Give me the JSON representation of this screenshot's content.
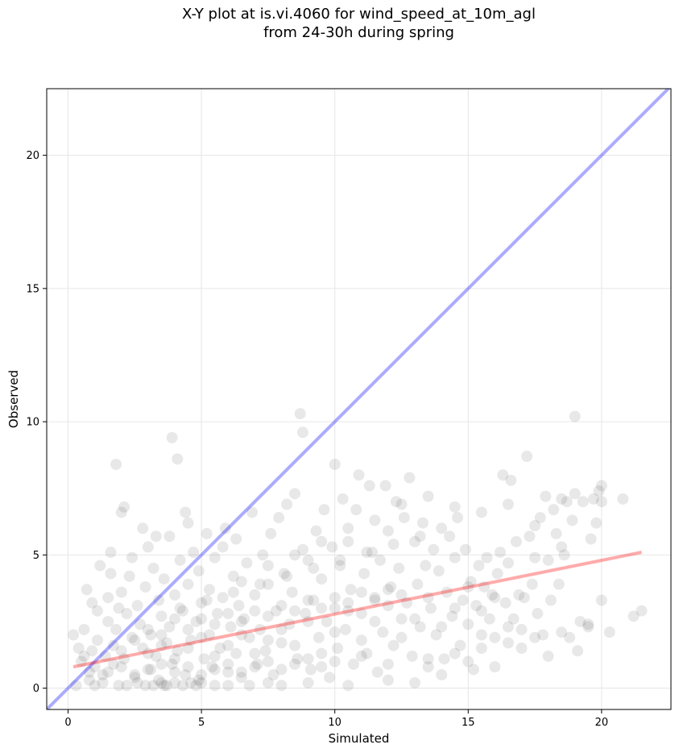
{
  "chart_data": {
    "type": "scatter",
    "title_line1": "X-Y plot at is.vi.4060 for wind_speed_at_10m_agl",
    "title_line2": "from 24-30h during spring",
    "xlabel": "Simulated",
    "ylabel": "Observed",
    "xlim": [
      -0.8,
      22.6
    ],
    "ylim": [
      -0.8,
      22.5
    ],
    "xticks": [
      0,
      5,
      10,
      15,
      20
    ],
    "yticks": [
      0,
      5,
      10,
      15,
      20
    ],
    "grid": true,
    "point_color": "#000000",
    "one_to_one_line_color": "#0000ff",
    "fit_line_color": "#ff0000",
    "fit_line": {
      "x": [
        0.2,
        21.5
      ],
      "y": [
        0.8,
        5.1
      ]
    },
    "points": [
      [
        0.2,
        2.0
      ],
      [
        0.4,
        1.5
      ],
      [
        0.5,
        1.0
      ],
      [
        0.6,
        1.2
      ],
      [
        0.6,
        2.2
      ],
      [
        0.7,
        3.7
      ],
      [
        0.8,
        0.6
      ],
      [
        0.9,
        1.4
      ],
      [
        0.9,
        3.2
      ],
      [
        1.0,
        0.8
      ],
      [
        1.1,
        1.8
      ],
      [
        1.1,
        2.9
      ],
      [
        1.2,
        4.6
      ],
      [
        1.3,
        0.5
      ],
      [
        1.4,
        1.2
      ],
      [
        1.5,
        2.5
      ],
      [
        1.5,
        3.4
      ],
      [
        1.6,
        4.3
      ],
      [
        1.6,
        5.1
      ],
      [
        1.7,
        0.9
      ],
      [
        1.7,
        1.6
      ],
      [
        1.8,
        2.2
      ],
      [
        1.8,
        8.4
      ],
      [
        1.9,
        3.0
      ],
      [
        2.0,
        3.6
      ],
      [
        2.0,
        6.6
      ],
      [
        2.1,
        6.8
      ],
      [
        2.1,
        1.1
      ],
      [
        2.2,
        2.8
      ],
      [
        2.3,
        4.2
      ],
      [
        2.4,
        1.9
      ],
      [
        2.4,
        4.9
      ],
      [
        2.5,
        0.4
      ],
      [
        2.6,
        3.1
      ],
      [
        2.7,
        2.4
      ],
      [
        2.8,
        6.0
      ],
      [
        2.8,
        1.5
      ],
      [
        2.9,
        3.8
      ],
      [
        3.0,
        5.3
      ],
      [
        3.1,
        0.7
      ],
      [
        3.1,
        2.0
      ],
      [
        3.2,
        4.5
      ],
      [
        3.3,
        1.2
      ],
      [
        3.3,
        5.7
      ],
      [
        3.4,
        3.3
      ],
      [
        3.5,
        0.2
      ],
      [
        3.5,
        2.7
      ],
      [
        3.6,
        4.1
      ],
      [
        3.7,
        1.7
      ],
      [
        3.8,
        5.7
      ],
      [
        3.8,
        2.3
      ],
      [
        3.9,
        9.4
      ],
      [
        3.9,
        0.9
      ],
      [
        4.0,
        3.5
      ],
      [
        4.1,
        8.6
      ],
      [
        4.1,
        1.4
      ],
      [
        4.2,
        4.8
      ],
      [
        4.3,
        2.9
      ],
      [
        4.4,
        0.5
      ],
      [
        4.4,
        6.6
      ],
      [
        4.5,
        6.2
      ],
      [
        4.5,
        3.9
      ],
      [
        4.6,
        1.8
      ],
      [
        4.7,
        5.1
      ],
      [
        4.8,
        2.5
      ],
      [
        4.9,
        0.3
      ],
      [
        4.9,
        4.4
      ],
      [
        5.0,
        3.2
      ],
      [
        5.1,
        1.1
      ],
      [
        5.2,
        5.8
      ],
      [
        5.3,
        2.0
      ],
      [
        5.3,
        3.7
      ],
      [
        5.4,
        0.8
      ],
      [
        5.5,
        4.9
      ],
      [
        5.6,
        2.8
      ],
      [
        5.7,
        1.5
      ],
      [
        5.8,
        5.3
      ],
      [
        5.8,
        3.4
      ],
      [
        5.9,
        6.0
      ],
      [
        6.0,
        0.6
      ],
      [
        6.1,
        2.3
      ],
      [
        6.2,
        4.2
      ],
      [
        6.3,
        1.3
      ],
      [
        6.3,
        5.6
      ],
      [
        6.4,
        3.1
      ],
      [
        6.5,
        0.4
      ],
      [
        6.6,
        2.6
      ],
      [
        6.7,
        4.7
      ],
      [
        6.8,
        1.9
      ],
      [
        6.9,
        6.6
      ],
      [
        7.0,
        3.5
      ],
      [
        7.1,
        0.9
      ],
      [
        7.2,
        2.2
      ],
      [
        7.3,
        5.0
      ],
      [
        7.4,
        1.4
      ],
      [
        7.5,
        3.9
      ],
      [
        7.6,
        5.8
      ],
      [
        7.7,
        0.5
      ],
      [
        7.8,
        2.9
      ],
      [
        7.9,
        6.4
      ],
      [
        8.0,
        1.7
      ],
      [
        8.1,
        4.3
      ],
      [
        8.2,
        6.9
      ],
      [
        8.3,
        2.4
      ],
      [
        8.4,
        3.6
      ],
      [
        8.5,
        7.3
      ],
      [
        8.6,
        1.1
      ],
      [
        8.7,
        10.3
      ],
      [
        8.8,
        9.6
      ],
      [
        8.8,
        5.2
      ],
      [
        8.9,
        2.8
      ],
      [
        9.0,
        4.8
      ],
      [
        9.1,
        0.7
      ],
      [
        9.2,
        3.3
      ],
      [
        9.3,
        5.9
      ],
      [
        9.4,
        1.9
      ],
      [
        9.5,
        4.1
      ],
      [
        9.6,
        6.7
      ],
      [
        9.7,
        2.5
      ],
      [
        9.8,
        0.4
      ],
      [
        9.9,
        5.3
      ],
      [
        10.0,
        3.0
      ],
      [
        10.0,
        8.4
      ],
      [
        10.1,
        1.5
      ],
      [
        10.2,
        4.6
      ],
      [
        10.3,
        7.1
      ],
      [
        10.4,
        2.2
      ],
      [
        10.5,
        5.5
      ],
      [
        10.6,
        3.7
      ],
      [
        10.7,
        0.9
      ],
      [
        10.8,
        6.7
      ],
      [
        10.9,
        8.0
      ],
      [
        11.0,
        2.8
      ],
      [
        11.1,
        4.3
      ],
      [
        11.2,
        1.3
      ],
      [
        11.3,
        7.6
      ],
      [
        11.4,
        5.1
      ],
      [
        11.5,
        3.4
      ],
      [
        11.6,
        0.6
      ],
      [
        11.7,
        4.8
      ],
      [
        11.8,
        2.1
      ],
      [
        11.9,
        7.6
      ],
      [
        12.0,
        5.9
      ],
      [
        12.1,
        3.8
      ],
      [
        12.2,
        1.6
      ],
      [
        12.3,
        7.0
      ],
      [
        12.4,
        4.5
      ],
      [
        12.5,
        2.6
      ],
      [
        12.6,
        6.4
      ],
      [
        12.7,
        3.2
      ],
      [
        12.8,
        7.9
      ],
      [
        12.9,
        1.2
      ],
      [
        13.0,
        5.5
      ],
      [
        13.1,
        3.9
      ],
      [
        13.2,
        2.3
      ],
      [
        13.3,
        6.2
      ],
      [
        13.4,
        4.6
      ],
      [
        13.5,
        0.8
      ],
      [
        13.6,
        3.0
      ],
      [
        13.7,
        5.2
      ],
      [
        13.8,
        2.0
      ],
      [
        13.9,
        4.4
      ],
      [
        14.0,
        6.0
      ],
      [
        14.1,
        1.1
      ],
      [
        14.2,
        3.6
      ],
      [
        14.3,
        5.7
      ],
      [
        14.4,
        2.7
      ],
      [
        14.5,
        4.9
      ],
      [
        14.6,
        6.4
      ],
      [
        14.7,
        1.6
      ],
      [
        14.8,
        3.3
      ],
      [
        14.9,
        5.2
      ],
      [
        15.0,
        2.4
      ],
      [
        15.1,
        4.0
      ],
      [
        15.2,
        0.7
      ],
      [
        15.3,
        3.1
      ],
      [
        15.4,
        4.6
      ],
      [
        15.5,
        2.0
      ],
      [
        15.6,
        3.8
      ],
      [
        15.7,
        4.9
      ],
      [
        15.8,
        2.6
      ],
      [
        15.9,
        3.5
      ],
      [
        16.0,
        1.9
      ],
      [
        16.1,
        4.3
      ],
      [
        16.2,
        5.1
      ],
      [
        16.3,
        8.0
      ],
      [
        16.4,
        3.2
      ],
      [
        16.5,
        4.7
      ],
      [
        16.6,
        7.8
      ],
      [
        16.7,
        2.6
      ],
      [
        16.8,
        5.5
      ],
      [
        16.9,
        3.5
      ],
      [
        17.0,
        2.2
      ],
      [
        17.1,
        3.4
      ],
      [
        17.2,
        8.7
      ],
      [
        17.3,
        5.7
      ],
      [
        17.4,
        3.9
      ],
      [
        17.5,
        4.9
      ],
      [
        17.6,
        2.8
      ],
      [
        17.7,
        6.4
      ],
      [
        17.8,
        2.0
      ],
      [
        17.9,
        7.2
      ],
      [
        18.0,
        4.8
      ],
      [
        18.1,
        3.3
      ],
      [
        18.2,
        6.7
      ],
      [
        18.3,
        5.8
      ],
      [
        18.4,
        3.9
      ],
      [
        18.5,
        7.1
      ],
      [
        18.6,
        5.0
      ],
      [
        18.7,
        7.0
      ],
      [
        18.8,
        1.9
      ],
      [
        18.9,
        6.3
      ],
      [
        19.0,
        7.3
      ],
      [
        19.0,
        10.2
      ],
      [
        19.1,
        1.4
      ],
      [
        19.2,
        2.5
      ],
      [
        19.3,
        7.0
      ],
      [
        19.5,
        2.4
      ],
      [
        19.6,
        5.6
      ],
      [
        19.7,
        7.1
      ],
      [
        19.8,
        6.2
      ],
      [
        19.9,
        7.4
      ],
      [
        20.0,
        7.0
      ],
      [
        20.0,
        7.6
      ],
      [
        20.0,
        3.3
      ],
      [
        20.3,
        2.1
      ],
      [
        20.8,
        7.1
      ],
      [
        21.2,
        2.7
      ],
      [
        21.5,
        2.9
      ],
      [
        0.3,
        0.1
      ],
      [
        0.8,
        0.3
      ],
      [
        1.0,
        0.1
      ],
      [
        1.3,
        0.2
      ],
      [
        1.9,
        0.1
      ],
      [
        2.2,
        0.1
      ],
      [
        2.6,
        0.2
      ],
      [
        2.9,
        0.1
      ],
      [
        3.2,
        0.1
      ],
      [
        3.4,
        0.3
      ],
      [
        3.6,
        0.1
      ],
      [
        3.7,
        0.1
      ],
      [
        4.0,
        0.2
      ],
      [
        4.3,
        0.1
      ],
      [
        4.6,
        0.2
      ],
      [
        4.8,
        0.1
      ],
      [
        5.0,
        0.2
      ],
      [
        5.5,
        0.1
      ],
      [
        6.0,
        0.1
      ],
      [
        6.8,
        0.1
      ],
      [
        7.5,
        0.2
      ],
      [
        8.0,
        0.1
      ],
      [
        9.0,
        0.2
      ],
      [
        10.5,
        0.1
      ],
      [
        12.0,
        0.3
      ],
      [
        13.0,
        0.2
      ],
      [
        14.0,
        0.5
      ],
      [
        15.0,
        1.0
      ],
      [
        16.0,
        0.8
      ],
      [
        17.0,
        1.5
      ],
      [
        18.0,
        1.2
      ],
      [
        2.0,
        1.4
      ],
      [
        2.5,
        1.8
      ],
      [
        3.0,
        1.3
      ],
      [
        3.5,
        1.6
      ],
      [
        4.0,
        1.1
      ],
      [
        4.5,
        1.5
      ],
      [
        5.0,
        1.9
      ],
      [
        5.5,
        1.2
      ],
      [
        6.0,
        1.6
      ],
      [
        6.5,
        2.0
      ],
      [
        7.0,
        1.3
      ],
      [
        7.5,
        1.8
      ],
      [
        8.0,
        2.2
      ],
      [
        8.5,
        1.6
      ],
      [
        9.0,
        2.5
      ],
      [
        9.5,
        1.3
      ],
      [
        10.0,
        2.1
      ],
      [
        10.5,
        2.9
      ],
      [
        11.0,
        1.8
      ],
      [
        11.5,
        2.5
      ],
      [
        12.0,
        3.1
      ],
      [
        12.5,
        1.9
      ],
      [
        13.0,
        2.6
      ],
      [
        13.5,
        3.4
      ],
      [
        14.0,
        2.3
      ],
      [
        14.5,
        3.0
      ],
      [
        15.0,
        3.8
      ],
      [
        15.5,
        2.9
      ],
      [
        16.0,
        3.4
      ],
      [
        16.5,
        2.3
      ],
      [
        3.0,
        2.2
      ],
      [
        3.5,
        2.0
      ],
      [
        4.0,
        2.6
      ],
      [
        4.5,
        2.2
      ],
      [
        5.0,
        2.6
      ],
      [
        5.5,
        2.4
      ],
      [
        6.0,
        2.8
      ],
      [
        6.5,
        2.5
      ],
      [
        7.0,
        2.9
      ],
      [
        7.5,
        2.7
      ],
      [
        8.0,
        3.1
      ],
      [
        8.5,
        2.9
      ],
      [
        9.0,
        3.3
      ],
      [
        9.5,
        3.0
      ],
      [
        10.0,
        3.4
      ],
      [
        10.5,
        3.2
      ],
      [
        11.0,
        3.6
      ],
      [
        11.5,
        3.3
      ],
      [
        12.0,
        3.7
      ],
      [
        12.5,
        3.5
      ],
      [
        4.2,
        3.0
      ],
      [
        5.2,
        3.3
      ],
      [
        6.2,
        3.6
      ],
      [
        7.2,
        3.9
      ],
      [
        8.2,
        4.2
      ],
      [
        9.2,
        4.5
      ],
      [
        10.2,
        4.8
      ],
      [
        11.2,
        5.1
      ],
      [
        12.2,
        5.4
      ],
      [
        13.2,
        5.7
      ],
      [
        1.5,
        0.6
      ],
      [
        2.0,
        0.8
      ],
      [
        2.5,
        0.5
      ],
      [
        3.0,
        0.7
      ],
      [
        3.5,
        0.9
      ],
      [
        4.0,
        0.6
      ],
      [
        4.5,
        0.8
      ],
      [
        5.0,
        0.5
      ],
      [
        5.5,
        0.7
      ],
      [
        6.0,
        0.9
      ],
      [
        6.5,
        0.6
      ],
      [
        7.0,
        0.8
      ],
      [
        7.5,
        1.0
      ],
      [
        8.0,
        0.7
      ],
      [
        8.5,
        0.9
      ],
      [
        9.0,
        1.1
      ],
      [
        9.5,
        0.8
      ],
      [
        10.0,
        1.0
      ],
      [
        11.0,
        1.2
      ],
      [
        12.0,
        0.9
      ],
      [
        13.5,
        1.1
      ],
      [
        14.5,
        1.3
      ],
      [
        15.5,
        1.5
      ],
      [
        16.5,
        1.7
      ],
      [
        17.5,
        1.9
      ],
      [
        18.5,
        2.1
      ],
      [
        19.5,
        2.3
      ],
      [
        6.5,
        4.0
      ],
      [
        7.5,
        4.6
      ],
      [
        8.5,
        5.0
      ],
      [
        9.5,
        5.5
      ],
      [
        10.5,
        6.0
      ],
      [
        11.5,
        6.3
      ],
      [
        12.5,
        6.9
      ],
      [
        13.5,
        7.2
      ],
      [
        14.5,
        6.8
      ],
      [
        15.5,
        6.6
      ],
      [
        16.5,
        6.9
      ],
      [
        17.5,
        6.1
      ],
      [
        18.5,
        5.3
      ]
    ]
  }
}
